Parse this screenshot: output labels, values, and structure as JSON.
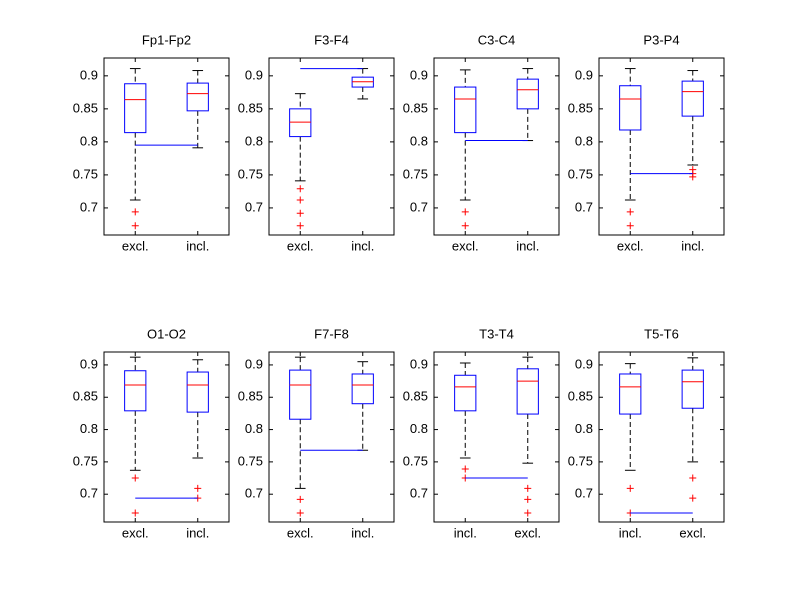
{
  "chart_data": [
    {
      "type": "box",
      "title": "Fp1-Fp2",
      "categories": [
        "excl.",
        "incl."
      ],
      "ylim": [
        0.659,
        0.927
      ],
      "yticks": [
        0.7,
        0.75,
        0.8,
        0.85,
        0.9
      ],
      "boxes": [
        {
          "low": 0.712,
          "q1": 0.814,
          "median": 0.864,
          "q3": 0.888,
          "high": 0.911,
          "outliers": [
            0.694,
            0.673
          ]
        },
        {
          "low": 0.791,
          "q1": 0.847,
          "median": 0.873,
          "q3": 0.889,
          "high": 0.908,
          "outliers": []
        }
      ],
      "line_value": 0.795
    },
    {
      "type": "box",
      "title": "F3-F4",
      "categories": [
        "excl.",
        "incl."
      ],
      "ylim": [
        0.659,
        0.927
      ],
      "yticks": [
        0.7,
        0.75,
        0.8,
        0.85,
        0.9
      ],
      "boxes": [
        {
          "low": 0.741,
          "q1": 0.808,
          "median": 0.83,
          "q3": 0.85,
          "high": 0.873,
          "outliers": [
            0.729,
            0.712,
            0.692,
            0.673
          ]
        },
        {
          "low": 0.865,
          "q1": 0.883,
          "median": 0.891,
          "q3": 0.898,
          "high": 0.911,
          "outliers": []
        }
      ],
      "line_value": 0.911
    },
    {
      "type": "box",
      "title": "C3-C4",
      "categories": [
        "excl.",
        "incl."
      ],
      "ylim": [
        0.659,
        0.927
      ],
      "yticks": [
        0.7,
        0.75,
        0.8,
        0.85,
        0.9
      ],
      "boxes": [
        {
          "low": 0.712,
          "q1": 0.814,
          "median": 0.865,
          "q3": 0.883,
          "high": 0.909,
          "outliers": [
            0.694,
            0.673
          ]
        },
        {
          "low": 0.802,
          "q1": 0.85,
          "median": 0.879,
          "q3": 0.895,
          "high": 0.911,
          "outliers": []
        }
      ],
      "line_value": 0.802
    },
    {
      "type": "box",
      "title": "P3-P4",
      "categories": [
        "excl.",
        "incl."
      ],
      "ylim": [
        0.659,
        0.927
      ],
      "yticks": [
        0.7,
        0.75,
        0.8,
        0.85,
        0.9
      ],
      "boxes": [
        {
          "low": 0.712,
          "q1": 0.818,
          "median": 0.865,
          "q3": 0.885,
          "high": 0.911,
          "outliers": [
            0.694,
            0.673
          ]
        },
        {
          "low": 0.765,
          "q1": 0.839,
          "median": 0.876,
          "q3": 0.892,
          "high": 0.908,
          "outliers": [
            0.758,
            0.752,
            0.747
          ]
        }
      ],
      "line_value": 0.752
    },
    {
      "type": "box",
      "title": "O1-O2",
      "categories": [
        "excl.",
        "incl."
      ],
      "ylim": [
        0.657,
        0.92
      ],
      "yticks": [
        0.7,
        0.75,
        0.8,
        0.85,
        0.9
      ],
      "boxes": [
        {
          "low": 0.737,
          "q1": 0.829,
          "median": 0.869,
          "q3": 0.891,
          "high": 0.912,
          "outliers": [
            0.725,
            0.671
          ]
        },
        {
          "low": 0.756,
          "q1": 0.827,
          "median": 0.869,
          "q3": 0.889,
          "high": 0.908,
          "outliers": [
            0.709,
            0.694
          ]
        }
      ],
      "line_value": 0.694
    },
    {
      "type": "box",
      "title": "F7-F8",
      "categories": [
        "excl.",
        "incl."
      ],
      "ylim": [
        0.657,
        0.92
      ],
      "yticks": [
        0.7,
        0.75,
        0.8,
        0.85,
        0.9
      ],
      "boxes": [
        {
          "low": 0.709,
          "q1": 0.816,
          "median": 0.869,
          "q3": 0.892,
          "high": 0.912,
          "outliers": [
            0.692,
            0.671
          ]
        },
        {
          "low": 0.768,
          "q1": 0.84,
          "median": 0.869,
          "q3": 0.886,
          "high": 0.905,
          "outliers": []
        }
      ],
      "line_value": 0.768
    },
    {
      "type": "box",
      "title": "T3-T4",
      "categories": [
        "incl.",
        "excl."
      ],
      "ylim": [
        0.657,
        0.92
      ],
      "yticks": [
        0.7,
        0.75,
        0.8,
        0.85,
        0.9
      ],
      "boxes": [
        {
          "low": 0.756,
          "q1": 0.829,
          "median": 0.866,
          "q3": 0.884,
          "high": 0.903,
          "outliers": [
            0.739,
            0.725
          ]
        },
        {
          "low": 0.748,
          "q1": 0.824,
          "median": 0.875,
          "q3": 0.894,
          "high": 0.912,
          "outliers": [
            0.709,
            0.692,
            0.671
          ]
        }
      ],
      "line_value": 0.725
    },
    {
      "type": "box",
      "title": "T5-T6",
      "categories": [
        "incl.",
        "excl."
      ],
      "ylim": [
        0.657,
        0.92
      ],
      "yticks": [
        0.7,
        0.75,
        0.8,
        0.85,
        0.9
      ],
      "boxes": [
        {
          "low": 0.737,
          "q1": 0.824,
          "median": 0.866,
          "q3": 0.886,
          "high": 0.902,
          "outliers": [
            0.709,
            0.671
          ]
        },
        {
          "low": 0.75,
          "q1": 0.833,
          "median": 0.874,
          "q3": 0.892,
          "high": 0.911,
          "outliers": [
            0.725,
            0.694
          ]
        }
      ],
      "line_value": 0.671
    }
  ]
}
